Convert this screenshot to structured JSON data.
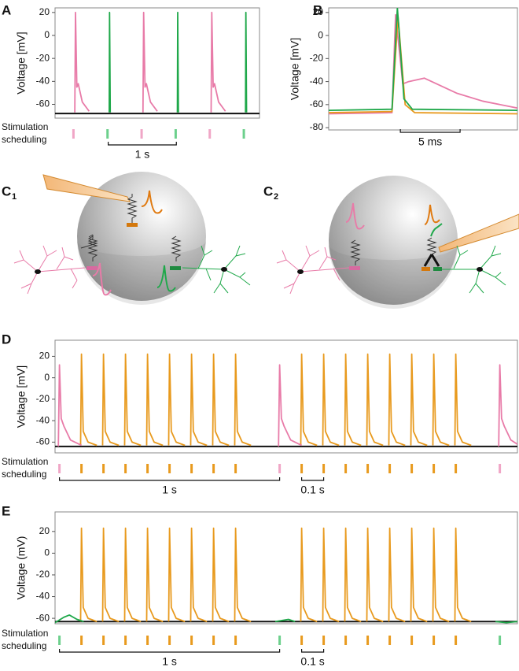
{
  "chart_data": [
    {
      "type": "line",
      "panel": "A",
      "ylabel": "Voltage [mV]",
      "xlim": [
        0,
        3.0
      ],
      "ylim": [
        -72,
        24
      ],
      "yticks": [
        20,
        0,
        -20,
        -40,
        -60
      ],
      "series": [
        {
          "color": "#111111",
          "x": [
            0,
            3.0
          ],
          "values": [
            -68,
            -68
          ]
        },
        {
          "color": "#e87ba8",
          "x": [
            0.29,
            0.3,
            0.32,
            0.34,
            0.4,
            0.5,
            null,
            1.29,
            1.3,
            1.32,
            1.34,
            1.4,
            1.5,
            null,
            2.29,
            2.3,
            2.32,
            2.34,
            2.4,
            2.5
          ],
          "values": [
            -67,
            20,
            -45,
            -42,
            -58,
            -66,
            null,
            -67,
            20,
            -45,
            -42,
            -58,
            -66,
            null,
            -67,
            20,
            -45,
            -42,
            -58,
            -66
          ]
        },
        {
          "color": "#1fa84a",
          "x": [
            0.795,
            0.8,
            0.81,
            null,
            1.795,
            1.8,
            1.81,
            null,
            2.795,
            2.8,
            2.81
          ],
          "values": [
            -67,
            20,
            -67,
            null,
            -67,
            20,
            -67,
            null,
            -67,
            20,
            -67
          ]
        }
      ],
      "stimulation": {
        "label": [
          "Stimulation",
          "scheduling"
        ],
        "markers": [
          {
            "color": "#f0a6c6",
            "x": [
              0.27,
              1.27,
              2.27
            ]
          },
          {
            "color": "#6cd08c",
            "x": [
              0.77,
              1.77,
              2.77
            ]
          }
        ]
      },
      "scalebars": [
        {
          "start": 0.78,
          "length": 1,
          "label": "1 s"
        }
      ]
    },
    {
      "type": "line",
      "panel": "B",
      "ylabel": "Voltage [mV]",
      "xlim": [
        0,
        15.8
      ],
      "ylim": [
        -82,
        24
      ],
      "yticks": [
        20,
        0,
        -20,
        -40,
        -60,
        -80
      ],
      "series": [
        {
          "color": "#e87ba8",
          "x": [
            0,
            5.3,
            5.6,
            6.2,
            6.7,
            8.0,
            10.7,
            12.9,
            15.8
          ],
          "values": [
            -68,
            -67,
            18,
            -42,
            -40,
            -37,
            -50,
            -57,
            -63
          ]
        },
        {
          "color": "#e89a1e",
          "x": [
            0,
            5.3,
            5.8,
            6.4,
            7.2,
            15.8
          ],
          "values": [
            -67,
            -66,
            17,
            -60,
            -67,
            -68
          ]
        },
        {
          "color": "#1fa84a",
          "x": [
            0,
            5.3,
            5.75,
            6.3,
            7.0,
            15.8
          ],
          "values": [
            -65,
            -64,
            24,
            -55,
            -64,
            -65
          ]
        }
      ],
      "scalebars": [
        {
          "start": 6.0,
          "length": 5,
          "label": "5 ms"
        }
      ]
    },
    {
      "type": "line",
      "panel": "D",
      "ylabel": "Voltage [mV]",
      "xlim": [
        0,
        2.1
      ],
      "ylim": [
        -70,
        35
      ],
      "yticks": [
        20,
        0,
        -20,
        -40,
        -60
      ],
      "series": [
        {
          "color": "#111111",
          "x": [
            0,
            2.1
          ],
          "values": [
            -64,
            -64
          ]
        },
        {
          "color": "#e89a1e",
          "x": [
            0.116,
            0.12,
            0.128,
            0.15,
            0.19,
            null,
            0.216,
            0.22,
            0.228,
            0.25,
            0.29,
            null,
            0.316,
            0.32,
            0.328,
            0.35,
            0.39,
            null,
            0.416,
            0.42,
            0.428,
            0.45,
            0.49,
            null,
            0.516,
            0.52,
            0.528,
            0.55,
            0.59,
            null,
            0.616,
            0.62,
            0.628,
            0.65,
            0.69,
            null,
            0.716,
            0.72,
            0.728,
            0.75,
            0.79,
            null,
            0.816,
            0.82,
            0.828,
            0.85,
            0.89,
            null,
            1.116,
            1.12,
            1.128,
            1.15,
            1.19,
            null,
            1.216,
            1.22,
            1.228,
            1.25,
            1.29,
            null,
            1.316,
            1.32,
            1.328,
            1.35,
            1.39,
            null,
            1.416,
            1.42,
            1.428,
            1.45,
            1.49,
            null,
            1.516,
            1.52,
            1.528,
            1.55,
            1.59,
            null,
            1.616,
            1.62,
            1.628,
            1.65,
            1.69,
            null,
            1.716,
            1.72,
            1.728,
            1.75,
            1.79,
            null,
            1.816,
            1.82,
            1.828,
            1.85,
            1.89
          ],
          "values": [
            -63,
            22,
            -50,
            -60,
            -63,
            null,
            -63,
            22,
            -50,
            -60,
            -63,
            null,
            -63,
            22,
            -50,
            -60,
            -63,
            null,
            -63,
            22,
            -50,
            -60,
            -63,
            null,
            -63,
            22,
            -50,
            -60,
            -63,
            null,
            -63,
            22,
            -50,
            -60,
            -63,
            null,
            -63,
            22,
            -50,
            -60,
            -63,
            null,
            -63,
            22,
            -50,
            -60,
            -63,
            null,
            -63,
            22,
            -50,
            -60,
            -63,
            null,
            -63,
            22,
            -50,
            -60,
            -63,
            null,
            -63,
            22,
            -50,
            -60,
            -63,
            null,
            -63,
            22,
            -50,
            -60,
            -63,
            null,
            -63,
            22,
            -50,
            -60,
            -63,
            null,
            -63,
            22,
            -50,
            -60,
            -63,
            null,
            -63,
            22,
            -50,
            -60,
            -63,
            null,
            -63,
            22,
            -50,
            -60,
            -63
          ]
        },
        {
          "color": "#e87ba8",
          "x": [
            0.015,
            0.02,
            0.028,
            0.04,
            0.07,
            0.12,
            null,
            1.015,
            1.02,
            1.028,
            1.04,
            1.07,
            1.12,
            null,
            2.015,
            2.02,
            2.028,
            2.04,
            2.07,
            2.1
          ],
          "values": [
            -64,
            12,
            -38,
            -45,
            -58,
            -63,
            null,
            -64,
            12,
            -38,
            -45,
            -58,
            -63,
            null,
            -64,
            12,
            -38,
            -45,
            -58,
            -62
          ]
        }
      ],
      "stimulation": {
        "label": [
          "Stimulation",
          "scheduling"
        ],
        "markers": [
          {
            "color": "#f0a6c6",
            "x": [
              0.02,
              1.02,
              2.02
            ]
          },
          {
            "color": "#e89a1e",
            "x": [
              0.12,
              0.22,
              0.32,
              0.42,
              0.52,
              0.62,
              0.72,
              0.82,
              1.12,
              1.22,
              1.32,
              1.42,
              1.52,
              1.62,
              1.72,
              1.82
            ]
          }
        ]
      },
      "scalebars": [
        {
          "start": 0.02,
          "length": 1,
          "label": "1 s"
        },
        {
          "start": 1.12,
          "length": 0.1,
          "label": "0.1 s"
        }
      ]
    },
    {
      "type": "line",
      "panel": "E",
      "ylabel": "Voltage (mV)",
      "xlim": [
        0,
        2.1
      ],
      "ylim": [
        -65,
        38
      ],
      "yticks": [
        20,
        0,
        -20,
        -40,
        -60
      ],
      "series": [
        {
          "color": "#111111",
          "x": [
            0,
            2.1
          ],
          "values": [
            -63,
            -63
          ]
        },
        {
          "color": "#e89a1e",
          "x": [
            0.116,
            0.12,
            0.128,
            0.15,
            0.19,
            null,
            0.216,
            0.22,
            0.228,
            0.25,
            0.29,
            null,
            0.316,
            0.32,
            0.328,
            0.35,
            0.39,
            null,
            0.416,
            0.42,
            0.428,
            0.45,
            0.49,
            null,
            0.516,
            0.52,
            0.528,
            0.55,
            0.59,
            null,
            0.616,
            0.62,
            0.628,
            0.65,
            0.69,
            null,
            0.716,
            0.72,
            0.728,
            0.75,
            0.79,
            null,
            0.816,
            0.82,
            0.828,
            0.85,
            0.89,
            null,
            1.116,
            1.12,
            1.128,
            1.15,
            1.19,
            null,
            1.216,
            1.22,
            1.228,
            1.25,
            1.29,
            null,
            1.316,
            1.32,
            1.328,
            1.35,
            1.39,
            null,
            1.416,
            1.42,
            1.428,
            1.45,
            1.49,
            null,
            1.516,
            1.52,
            1.528,
            1.55,
            1.59,
            null,
            1.616,
            1.62,
            1.628,
            1.65,
            1.69,
            null,
            1.716,
            1.72,
            1.728,
            1.75,
            1.79,
            null,
            1.816,
            1.82,
            1.828,
            1.85,
            1.89
          ],
          "values": [
            -63,
            23,
            -50,
            -60,
            -63,
            null,
            -63,
            23,
            -50,
            -60,
            -63,
            null,
            -63,
            23,
            -50,
            -60,
            -63,
            null,
            -63,
            23,
            -50,
            -60,
            -63,
            null,
            -63,
            23,
            -50,
            -60,
            -63,
            null,
            -63,
            23,
            -50,
            -60,
            -63,
            null,
            -63,
            23,
            -50,
            -60,
            -63,
            null,
            -63,
            23,
            -50,
            -60,
            -63,
            null,
            -63,
            23,
            -50,
            -60,
            -63,
            null,
            -63,
            23,
            -50,
            -60,
            -63,
            null,
            -63,
            23,
            -50,
            -60,
            -63,
            null,
            -63,
            23,
            -50,
            -60,
            -63,
            null,
            -63,
            23,
            -50,
            -60,
            -63,
            null,
            -63,
            23,
            -50,
            -60,
            -63,
            null,
            -63,
            23,
            -50,
            -60,
            -63,
            null,
            -63,
            23,
            -50,
            -60,
            -63
          ]
        },
        {
          "color": "#1fa84a",
          "x": [
            0,
            0.04,
            0.065,
            0.1,
            0.13,
            null,
            1.0,
            1.03,
            1.06,
            1.09,
            null,
            2.0,
            2.05,
            2.1
          ],
          "values": [
            -64,
            -59,
            -57,
            -61,
            -63,
            null,
            -63,
            -62,
            -61,
            -63,
            null,
            -63,
            -64,
            -63
          ]
        }
      ],
      "stimulation": {
        "label": [
          "Stimulation",
          "scheduling"
        ],
        "markers": [
          {
            "color": "#6cd08c",
            "x": [
              0.02,
              1.02,
              2.02
            ]
          },
          {
            "color": "#e89a1e",
            "x": [
              0.12,
              0.22,
              0.32,
              0.42,
              0.52,
              0.62,
              0.72,
              0.82,
              1.12,
              1.22,
              1.32,
              1.42,
              1.52,
              1.62,
              1.72,
              1.82
            ]
          }
        ]
      },
      "scalebars": [
        {
          "start": 0.02,
          "length": 1,
          "label": "1 s"
        },
        {
          "start": 1.12,
          "length": 0.1,
          "label": "0.1 s"
        }
      ]
    }
  ],
  "diagram_labels": [
    {
      "letter": "C",
      "index": "1"
    },
    {
      "letter": "C",
      "index": "2"
    }
  ]
}
